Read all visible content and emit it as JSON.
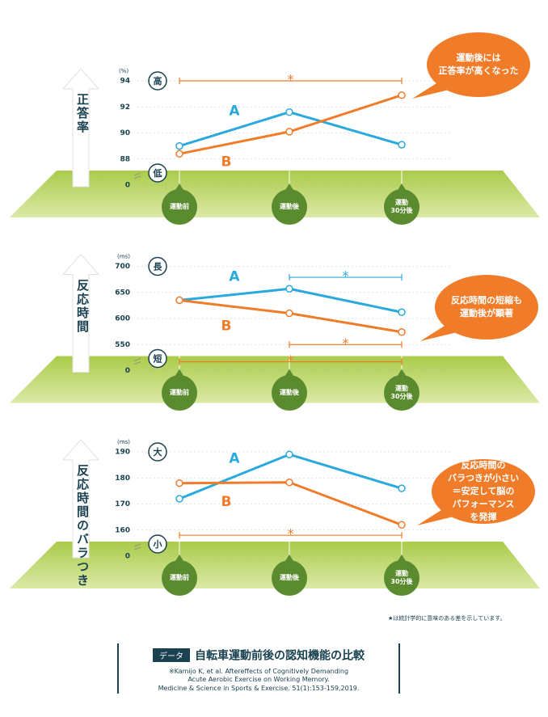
{
  "chart_data": [
    {
      "type": "line",
      "y_label": "正答率",
      "y_unit": "(%)",
      "level_labels": [
        "高",
        "低"
      ],
      "categories": [
        "運動前",
        "運動後",
        "運動\n30分後"
      ],
      "series": [
        {
          "name": "A",
          "color": "#29a9dd",
          "values": [
            89,
            91.6,
            89.1
          ]
        },
        {
          "name": "B",
          "color": "#f07c2a",
          "values": [
            88.4,
            90.1,
            92.9
          ]
        }
      ],
      "ylim": [
        86,
        94
      ],
      "yticks": [
        0,
        88,
        90,
        92,
        94
      ],
      "axis_break": true,
      "significance": [
        {
          "label": "*",
          "color": "#f07c2a",
          "from": 0,
          "to": 2,
          "y": 94
        }
      ],
      "annotation": "運動後には\n正答率が高くなった"
    },
    {
      "type": "line",
      "y_label": "反応時間",
      "y_unit": "(ms)",
      "level_labels": [
        "長",
        "短"
      ],
      "categories": [
        "運動前",
        "運動後",
        "運動\n30分後"
      ],
      "series": [
        {
          "name": "A",
          "color": "#29a9dd",
          "values": [
            635,
            657,
            612
          ]
        },
        {
          "name": "B",
          "color": "#f07c2a",
          "values": [
            635,
            610,
            574
          ]
        }
      ],
      "ylim": [
        500,
        700
      ],
      "yticks": [
        0,
        550,
        600,
        650,
        700
      ],
      "axis_break": true,
      "significance": [
        {
          "label": "*",
          "color": "#29a9dd",
          "from": 1,
          "to": 2,
          "y": 679
        },
        {
          "label": "*",
          "color": "#f07c2a",
          "from": 1,
          "to": 2,
          "y": 550
        },
        {
          "label": "*",
          "color": "#f07c2a",
          "from": 0,
          "to": 2,
          "y": 517
        }
      ],
      "annotation": "反応時間の短縮も\n運動後が顕著"
    },
    {
      "type": "line",
      "y_label": "反応時間のバラつき",
      "y_unit": "(ms)",
      "level_labels": [
        "大",
        "小"
      ],
      "categories": [
        "運動前",
        "運動後",
        "運動\n30分後"
      ],
      "series": [
        {
          "name": "A",
          "color": "#29a9dd",
          "values": [
            172,
            189,
            176
          ]
        },
        {
          "name": "B",
          "color": "#f07c2a",
          "values": [
            178,
            178.3,
            162
          ]
        }
      ],
      "ylim": [
        150,
        190
      ],
      "yticks": [
        0,
        160,
        170,
        180,
        190
      ],
      "axis_break": true,
      "significance": [
        {
          "label": "*",
          "color": "#f07c2a",
          "from": 0,
          "to": 2,
          "y": 158
        }
      ],
      "annotation": "反応時間の\nバラつきが小さい\n＝安定して脳の\nパフォーマンス\nを発揮"
    }
  ],
  "footer": {
    "note": "★は統計学的に意味のある差を示しています。",
    "tag": "データ",
    "title": "自転車運動前後の認知機能の比較",
    "citation": [
      "※Kamijo K, et al. Aftereffects of Cognitively Demanding",
      "Acute Aerobic Exercise on Working Memory.",
      "Medicine & Science in Sports & Exercise. 51(1):153-159,2019."
    ]
  }
}
